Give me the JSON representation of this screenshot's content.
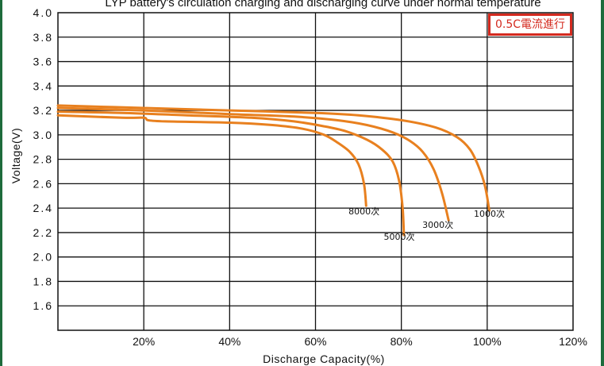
{
  "chart_data": {
    "type": "line",
    "title": "LYP battery's circulation charging and discharging curve under normal temperature",
    "xlabel": "Discharge Capacity(%)",
    "ylabel": "Voltage(V)",
    "xlim": [
      0,
      120
    ],
    "ylim": [
      1.4,
      4.0
    ],
    "xticks": [
      20,
      40,
      60,
      80,
      100,
      120
    ],
    "xtick_labels": [
      "20%",
      "40%",
      "60%",
      "80%",
      "100%",
      "120%"
    ],
    "yticks": [
      1.6,
      1.8,
      2.0,
      2.2,
      2.4,
      2.6,
      2.8,
      3.0,
      3.2,
      3.4,
      3.6,
      3.8,
      4.0
    ],
    "ytick_labels": [
      "1.6",
      "1.8",
      "2.0",
      "2.2",
      "2.4",
      "2.6",
      "2.8",
      "3.0",
      "3.2",
      "3.4",
      "3.6",
      "3.8",
      "4.0"
    ],
    "grid": true,
    "badge": "0.5C電流進行",
    "series": [
      {
        "name": "1000次",
        "color": "#e8801f",
        "points": [
          [
            0,
            3.24
          ],
          [
            10,
            3.23
          ],
          [
            20,
            3.22
          ],
          [
            40,
            3.2
          ],
          [
            60,
            3.18
          ],
          [
            70,
            3.16
          ],
          [
            80,
            3.12
          ],
          [
            88,
            3.06
          ],
          [
            93,
            2.98
          ],
          [
            96,
            2.88
          ],
          [
            98,
            2.74
          ],
          [
            99.5,
            2.58
          ],
          [
            100.5,
            2.38
          ]
        ]
      },
      {
        "name": "3000次",
        "color": "#e8801f",
        "points": [
          [
            0,
            3.22
          ],
          [
            20,
            3.2
          ],
          [
            40,
            3.17
          ],
          [
            55,
            3.15
          ],
          [
            65,
            3.12
          ],
          [
            72,
            3.08
          ],
          [
            78,
            3.02
          ],
          [
            82,
            2.95
          ],
          [
            85,
            2.86
          ],
          [
            87.5,
            2.72
          ],
          [
            89.5,
            2.52
          ],
          [
            91,
            2.3
          ]
        ]
      },
      {
        "name": "5000次",
        "color": "#e8801f",
        "points": [
          [
            0,
            3.19
          ],
          [
            15,
            3.18
          ],
          [
            30,
            3.16
          ],
          [
            45,
            3.14
          ],
          [
            55,
            3.11
          ],
          [
            62,
            3.07
          ],
          [
            67,
            3.03
          ],
          [
            72,
            2.96
          ],
          [
            75.5,
            2.88
          ],
          [
            78,
            2.78
          ],
          [
            79.5,
            2.62
          ],
          [
            80.3,
            2.4
          ],
          [
            80.6,
            2.18
          ]
        ]
      },
      {
        "name": "8000次",
        "color": "#e8801f",
        "points": [
          [
            0,
            3.16
          ],
          [
            15,
            3.14
          ],
          [
            20,
            3.14
          ],
          [
            21,
            3.12
          ],
          [
            25,
            3.11
          ],
          [
            40,
            3.1
          ],
          [
            50,
            3.08
          ],
          [
            57,
            3.05
          ],
          [
            62,
            3.0
          ],
          [
            65,
            2.94
          ],
          [
            68,
            2.86
          ],
          [
            70,
            2.76
          ],
          [
            71.3,
            2.6
          ],
          [
            71.8,
            2.42
          ]
        ]
      }
    ],
    "labels": [
      {
        "text": "1000次",
        "x": 100.5,
        "y": 2.33
      },
      {
        "text": "3000次",
        "x": 88.5,
        "y": 2.24
      },
      {
        "text": "5000次",
        "x": 79.5,
        "y": 2.14
      },
      {
        "text": "8000次",
        "x": 71.3,
        "y": 2.35
      }
    ]
  }
}
